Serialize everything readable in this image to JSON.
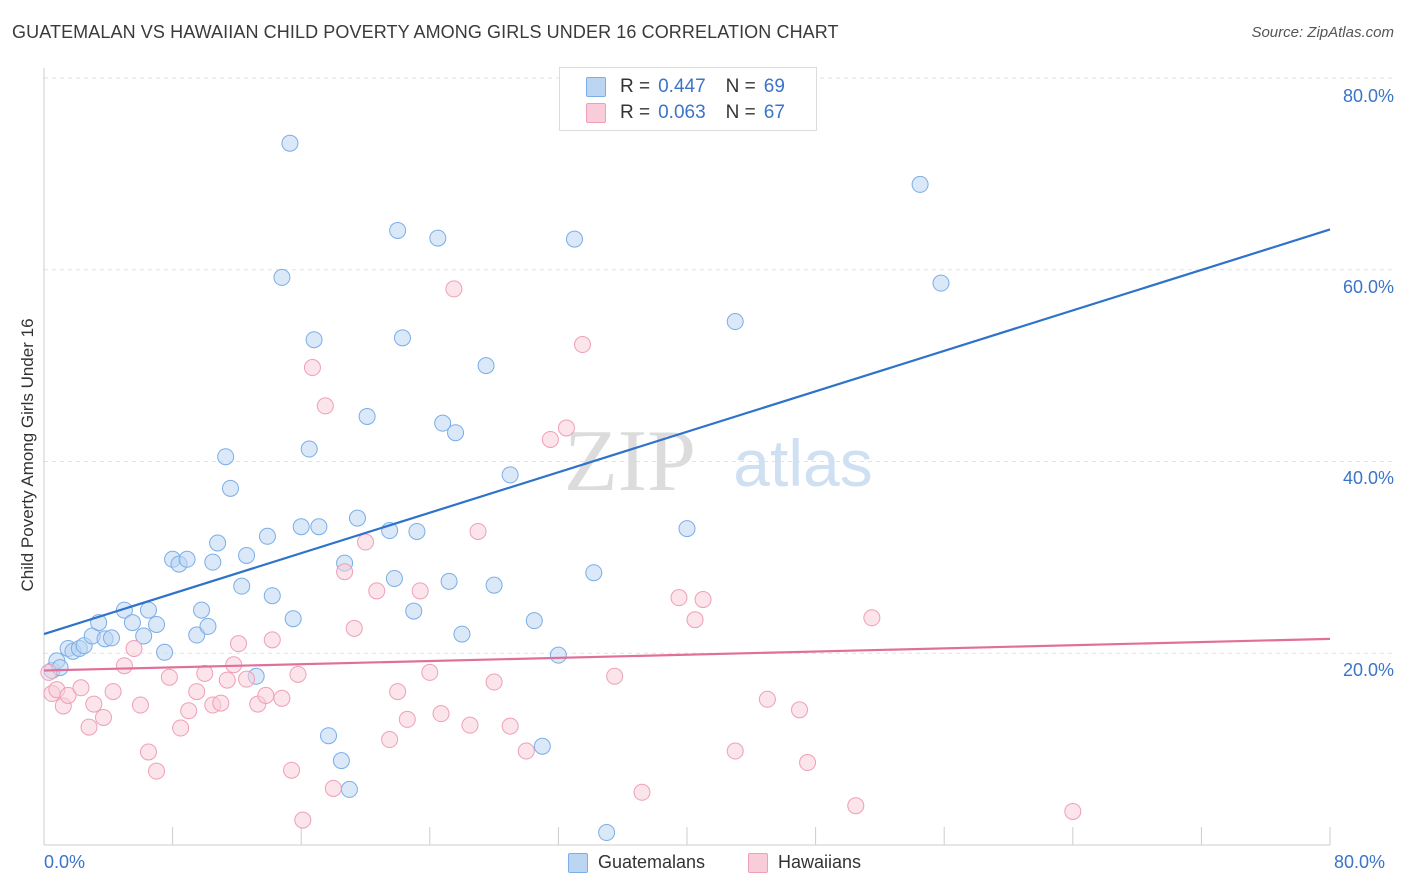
{
  "title": "GUATEMALAN VS HAWAIIAN CHILD POVERTY AMONG GIRLS UNDER 16 CORRELATION CHART",
  "source": "Source: ZipAtlas.com",
  "watermark": {
    "zip": "ZIP",
    "atlas": "atlas"
  },
  "legend_top": {
    "rows": [
      {
        "r_label": "R =",
        "r_value": "0.447",
        "n_label": "N =",
        "n_value": "69",
        "color": "#a9c8f0"
      },
      {
        "r_label": "R =",
        "r_value": "0.063",
        "n_label": "N =",
        "n_value": "67",
        "color": "#f5b8cb"
      }
    ]
  },
  "chart_data": {
    "type": "scatter",
    "title": "GUATEMALAN VS HAWAIIAN CHILD POVERTY AMONG GIRLS UNDER 16 CORRELATION CHART",
    "xlabel": "",
    "ylabel": "Child Poverty Among Girls Under 16",
    "xlim": [
      0,
      80
    ],
    "ylim": [
      0,
      80
    ],
    "x_tick_labels": [
      "0.0%",
      "80.0%"
    ],
    "y_tick_labels": [
      "20.0%",
      "40.0%",
      "60.0%",
      "80.0%"
    ],
    "y_ticks": [
      20,
      40,
      60,
      80
    ],
    "grid": "horizontal dashed",
    "legend_position": "top-center and bottom",
    "series": [
      {
        "name": "Guatemalans",
        "color": "#7aaee8",
        "fill": "#bcd5f3",
        "trend": {
          "x": [
            0,
            80
          ],
          "y": [
            22.0,
            64.2
          ],
          "color": "#2f72c9"
        },
        "points": [
          [
            0.5,
            18.2
          ],
          [
            0.8,
            19.2
          ],
          [
            1.0,
            18.5
          ],
          [
            1.5,
            20.5
          ],
          [
            1.8,
            20.2
          ],
          [
            2.2,
            20.5
          ],
          [
            2.5,
            20.8
          ],
          [
            3.0,
            21.8
          ],
          [
            3.4,
            23.2
          ],
          [
            3.8,
            21.5
          ],
          [
            4.2,
            21.6
          ],
          [
            5.0,
            24.5
          ],
          [
            5.5,
            23.2
          ],
          [
            6.2,
            21.8
          ],
          [
            6.5,
            24.5
          ],
          [
            7.0,
            23.0
          ],
          [
            7.5,
            20.1
          ],
          [
            8.0,
            29.8
          ],
          [
            8.4,
            29.3
          ],
          [
            8.9,
            29.8
          ],
          [
            9.5,
            21.9
          ],
          [
            9.8,
            24.5
          ],
          [
            10.2,
            22.8
          ],
          [
            10.5,
            29.5
          ],
          [
            10.8,
            31.5
          ],
          [
            11.3,
            40.5
          ],
          [
            11.6,
            37.2
          ],
          [
            12.3,
            27.0
          ],
          [
            12.6,
            30.2
          ],
          [
            13.2,
            17.6
          ],
          [
            13.9,
            32.2
          ],
          [
            14.2,
            26.0
          ],
          [
            14.8,
            59.2
          ],
          [
            15.3,
            73.2
          ],
          [
            15.5,
            23.6
          ],
          [
            16.0,
            33.2
          ],
          [
            16.5,
            41.3
          ],
          [
            16.8,
            52.7
          ],
          [
            17.1,
            33.2
          ],
          [
            17.7,
            11.4
          ],
          [
            18.5,
            8.8
          ],
          [
            18.7,
            29.4
          ],
          [
            19.0,
            5.8
          ],
          [
            19.5,
            34.1
          ],
          [
            20.1,
            44.7
          ],
          [
            21.5,
            32.8
          ],
          [
            21.8,
            27.8
          ],
          [
            22.0,
            64.1
          ],
          [
            22.3,
            52.9
          ],
          [
            23.0,
            24.4
          ],
          [
            23.2,
            32.7
          ],
          [
            24.5,
            63.3
          ],
          [
            24.8,
            44.0
          ],
          [
            25.2,
            27.5
          ],
          [
            25.6,
            43.0
          ],
          [
            26.0,
            22.0
          ],
          [
            27.5,
            50.0
          ],
          [
            28.0,
            27.1
          ],
          [
            29.0,
            38.6
          ],
          [
            30.5,
            23.4
          ],
          [
            31.0,
            10.3
          ],
          [
            32.0,
            19.8
          ],
          [
            33.0,
            63.2
          ],
          [
            34.2,
            28.4
          ],
          [
            35.0,
            1.3
          ],
          [
            40.0,
            33.0
          ],
          [
            43.0,
            54.6
          ],
          [
            54.5,
            68.9
          ],
          [
            55.8,
            58.6
          ]
        ]
      },
      {
        "name": "Hawaiians",
        "color": "#ef9fb8",
        "fill": "#f8cdd9",
        "trend": {
          "x": [
            0,
            80
          ],
          "y": [
            18.2,
            21.5
          ],
          "color": "#e0709a"
        },
        "points": [
          [
            0.3,
            18.0
          ],
          [
            0.5,
            15.8
          ],
          [
            0.8,
            16.2
          ],
          [
            1.2,
            14.5
          ],
          [
            1.5,
            15.6
          ],
          [
            2.3,
            16.4
          ],
          [
            2.8,
            12.3
          ],
          [
            3.1,
            14.7
          ],
          [
            3.7,
            13.3
          ],
          [
            4.3,
            16.0
          ],
          [
            5.0,
            18.7
          ],
          [
            5.6,
            20.5
          ],
          [
            6.0,
            14.6
          ],
          [
            6.5,
            9.7
          ],
          [
            7.0,
            7.7
          ],
          [
            7.8,
            17.5
          ],
          [
            8.5,
            12.2
          ],
          [
            9.0,
            14.0
          ],
          [
            9.5,
            16.0
          ],
          [
            10.0,
            17.9
          ],
          [
            10.5,
            14.6
          ],
          [
            11.0,
            14.8
          ],
          [
            11.4,
            17.2
          ],
          [
            11.8,
            18.8
          ],
          [
            12.1,
            21.0
          ],
          [
            12.6,
            17.3
          ],
          [
            13.3,
            14.7
          ],
          [
            13.8,
            15.6
          ],
          [
            14.2,
            21.4
          ],
          [
            14.8,
            15.3
          ],
          [
            15.4,
            7.8
          ],
          [
            15.8,
            17.8
          ],
          [
            16.1,
            2.6
          ],
          [
            16.7,
            49.8
          ],
          [
            17.5,
            45.8
          ],
          [
            18.0,
            5.9
          ],
          [
            18.7,
            28.5
          ],
          [
            19.3,
            22.6
          ],
          [
            20.0,
            31.6
          ],
          [
            20.7,
            26.5
          ],
          [
            21.5,
            11.0
          ],
          [
            22.0,
            16.0
          ],
          [
            22.6,
            13.1
          ],
          [
            23.4,
            26.5
          ],
          [
            24.0,
            18.0
          ],
          [
            24.7,
            13.7
          ],
          [
            25.5,
            58.0
          ],
          [
            26.5,
            12.5
          ],
          [
            27.0,
            32.7
          ],
          [
            28.0,
            17.0
          ],
          [
            29.0,
            12.4
          ],
          [
            30.0,
            9.8
          ],
          [
            31.5,
            42.3
          ],
          [
            32.5,
            43.5
          ],
          [
            33.5,
            52.2
          ],
          [
            35.5,
            17.6
          ],
          [
            37.2,
            5.5
          ],
          [
            39.5,
            25.8
          ],
          [
            40.5,
            23.5
          ],
          [
            41.0,
            25.6
          ],
          [
            43.0,
            9.8
          ],
          [
            45.0,
            15.2
          ],
          [
            47.0,
            14.1
          ],
          [
            47.5,
            8.6
          ],
          [
            50.5,
            4.1
          ],
          [
            51.5,
            23.7
          ],
          [
            64.0,
            3.5
          ]
        ]
      }
    ]
  }
}
